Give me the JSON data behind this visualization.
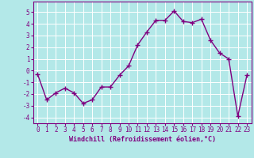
{
  "x": [
    0,
    1,
    2,
    3,
    4,
    5,
    6,
    7,
    8,
    9,
    10,
    11,
    12,
    13,
    14,
    15,
    16,
    17,
    18,
    19,
    20,
    21,
    22,
    23
  ],
  "y": [
    -0.3,
    -2.5,
    -1.9,
    -1.5,
    -1.9,
    -2.8,
    -2.5,
    -1.4,
    -1.4,
    -0.4,
    0.4,
    2.2,
    3.3,
    4.3,
    4.3,
    5.1,
    4.2,
    4.1,
    4.4,
    2.6,
    1.5,
    1.0,
    -3.9,
    -0.4
  ],
  "line_color": "#800080",
  "marker": "+",
  "bg_color": "#b3e8e8",
  "grid_color": "#ffffff",
  "xlabel": "Windchill (Refroidissement éolien,°C)",
  "xlabel_color": "#800080",
  "tick_color": "#800080",
  "ylim": [
    -4.5,
    5.9
  ],
  "xlim": [
    -0.5,
    23.5
  ],
  "yticks": [
    -4,
    -3,
    -2,
    -1,
    0,
    1,
    2,
    3,
    4,
    5
  ],
  "xticks": [
    0,
    1,
    2,
    3,
    4,
    5,
    6,
    7,
    8,
    9,
    10,
    11,
    12,
    13,
    14,
    15,
    16,
    17,
    18,
    19,
    20,
    21,
    22,
    23
  ],
  "spine_color": "#800080",
  "markersize": 4,
  "linewidth": 1.0,
  "tick_fontsize": 5.5,
  "xlabel_fontsize": 6.0
}
